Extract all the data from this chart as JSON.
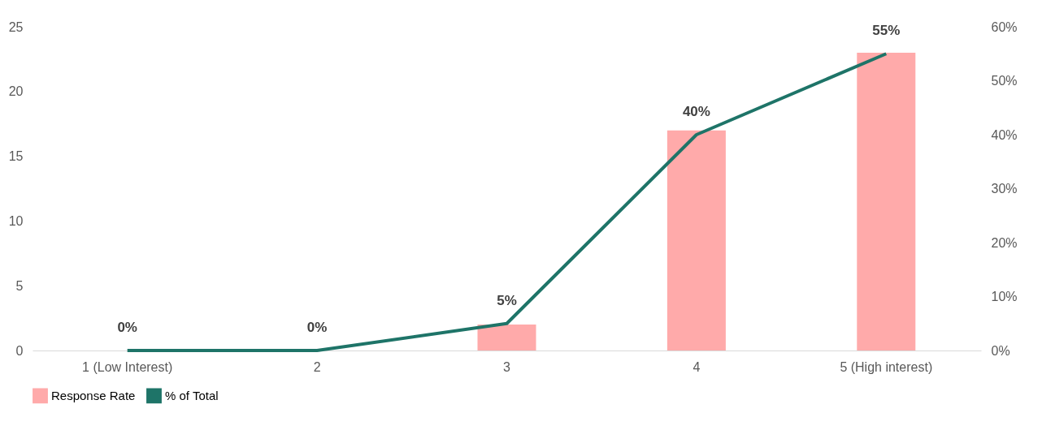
{
  "chart_data": {
    "type": "bar",
    "categories": [
      "1 (Low Interest)",
      "2",
      "3",
      "4",
      "5 (High interest)"
    ],
    "series": [
      {
        "name": "Response Rate",
        "color": "#ffaaaa",
        "values": [
          0,
          0,
          2,
          17,
          23
        ]
      },
      {
        "name": "% of Total",
        "type": "line",
        "axis": "y2",
        "color": "#1e7468",
        "values": [
          0,
          0,
          5,
          40,
          55
        ],
        "value_labels": [
          "0%",
          "0%",
          "5%",
          "40%",
          "55%"
        ]
      }
    ],
    "ylim": [
      0,
      25
    ],
    "yticks": [
      0,
      5,
      10,
      15,
      20,
      25
    ],
    "y2lim": [
      0,
      60
    ],
    "y2ticks": [
      {
        "value": 0,
        "label": "0%"
      },
      {
        "value": 10,
        "label": "10%"
      },
      {
        "value": 20,
        "label": "20%"
      },
      {
        "value": 30,
        "label": "30%"
      },
      {
        "value": 40,
        "label": "40%"
      },
      {
        "value": 50,
        "label": "50%"
      },
      {
        "value": 60,
        "label": "60%"
      }
    ],
    "grid": false,
    "legend": "bottom",
    "marker": "none",
    "line_style": "solid"
  }
}
